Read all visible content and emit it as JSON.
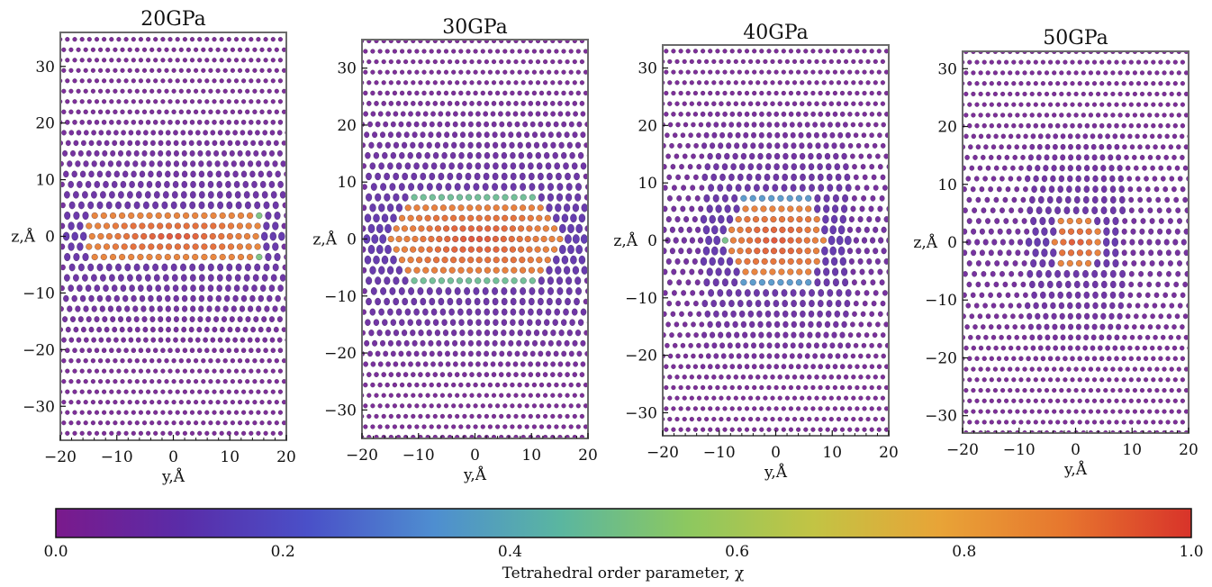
{
  "chart_data": [
    {
      "type": "scatter",
      "title": "20GPa",
      "xlabel": "y,Å",
      "ylabel": "z,Å",
      "xlim": [
        -20,
        20
      ],
      "ylim": [
        -36,
        36
      ],
      "xticks": [
        -20,
        -10,
        0,
        10,
        20
      ],
      "yticks": [
        -30,
        -20,
        -10,
        0,
        10,
        20,
        30
      ],
      "cluster": {
        "center": [
          0,
          0
        ],
        "half_width_y": 15.5,
        "half_height_z": 5.0,
        "shape": "band"
      },
      "color_encoding": "tetrahedral order parameter χ"
    },
    {
      "type": "scatter",
      "title": "30GPa",
      "xlabel": "y,Å",
      "ylabel": "z,Å",
      "xlim": [
        -20,
        20
      ],
      "ylim": [
        -35,
        35
      ],
      "xticks": [
        -20,
        -10,
        0,
        10,
        20
      ],
      "yticks": [
        -30,
        -20,
        -10,
        0,
        10,
        20,
        30
      ],
      "cluster": {
        "center": [
          0,
          0
        ],
        "half_width_y": 15.5,
        "half_height_z": 9.0,
        "shape": "hexagon"
      },
      "color_encoding": "tetrahedral order parameter χ"
    },
    {
      "type": "scatter",
      "title": "40GPa",
      "xlabel": "y,Å",
      "ylabel": "z,Å",
      "xlim": [
        -20,
        20
      ],
      "ylim": [
        -34,
        34
      ],
      "xticks": [
        -20,
        -10,
        0,
        10,
        20
      ],
      "yticks": [
        -30,
        -20,
        -10,
        0,
        10,
        20,
        30
      ],
      "cluster": {
        "center": [
          0,
          0
        ],
        "half_width_y": 9.0,
        "half_height_z": 8.0,
        "shape": "hexagon"
      },
      "color_encoding": "tetrahedral order parameter χ"
    },
    {
      "type": "scatter",
      "title": "50GPa",
      "xlabel": "y,Å",
      "ylabel": "z,Å",
      "xlim": [
        -20,
        20
      ],
      "ylim": [
        -33,
        33
      ],
      "xticks": [
        -20,
        -10,
        0,
        10,
        20
      ],
      "yticks": [
        -30,
        -20,
        -10,
        0,
        10,
        20,
        30
      ],
      "cluster": {
        "center": [
          0,
          0
        ],
        "half_width_y": 4.5,
        "half_height_z": 5.0,
        "shape": "hexagon"
      },
      "color_encoding": "tetrahedral order parameter χ"
    }
  ],
  "colorbar": {
    "label": "Tetrahedral order parameter, χ",
    "min": 0.0,
    "max": 1.0,
    "ticks": [
      "0.0",
      "0.2",
      "0.4",
      "0.6",
      "0.8",
      "1.0"
    ],
    "colormap": [
      "#7a1a8c",
      "#5a2ca8",
      "#4a50c8",
      "#4e8ed0",
      "#5ab6a0",
      "#8cc860",
      "#c2c444",
      "#e8a437",
      "#e7762e",
      "#d8332a"
    ]
  }
}
